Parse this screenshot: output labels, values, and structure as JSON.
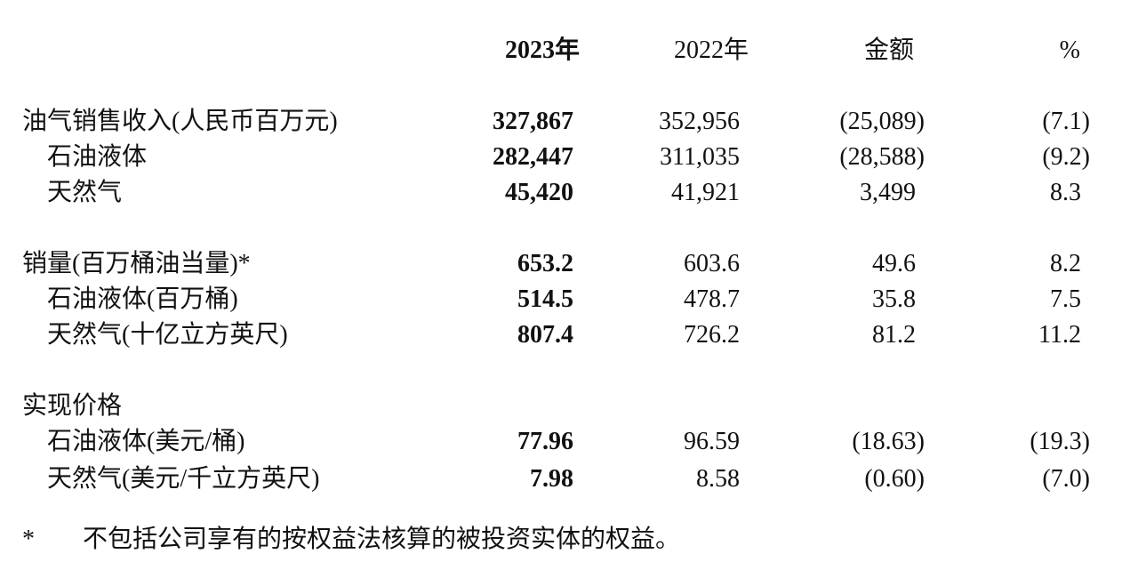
{
  "header": [
    "2023年",
    "2022年",
    "金额",
    "%"
  ],
  "sections": [
    {
      "label": "油气销售收入(人民币百万元)",
      "values": [
        "327,867",
        "352,956",
        "(25,089)",
        "(7.1)"
      ],
      "rows": [
        {
          "label": "石油液体",
          "values": [
            "282,447",
            "311,035",
            "(28,588)",
            "(9.2)"
          ]
        },
        {
          "label": "天然气",
          "values": [
            "45,420",
            "41,921",
            "3,499",
            "8.3"
          ]
        }
      ]
    },
    {
      "label": "销量(百万桶油当量)*",
      "values": [
        "653.2",
        "603.6",
        "49.6",
        "8.2"
      ],
      "rows": [
        {
          "label": "石油液体(百万桶)",
          "values": [
            "514.5",
            "478.7",
            "35.8",
            "7.5"
          ]
        },
        {
          "label": "天然气(十亿立方英尺)",
          "values": [
            "807.4",
            "726.2",
            "81.2",
            "11.2"
          ]
        }
      ]
    },
    {
      "label": "实现价格",
      "rows": [
        {
          "label": "石油液体(美元/桶)",
          "values": [
            "77.96",
            "96.59",
            "(18.63)",
            "(19.3)"
          ]
        },
        {
          "label": "天然气(美元/千立方英尺)",
          "values": [
            "7.98",
            "8.58",
            "(0.60)",
            "(7.0)"
          ]
        }
      ]
    }
  ],
  "footnote": {
    "mark": "*",
    "text": "不包括公司享有的按权益法核算的被投资实体的权益。"
  }
}
